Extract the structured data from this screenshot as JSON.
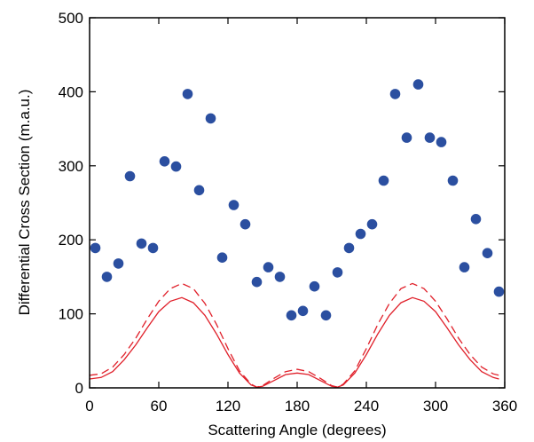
{
  "chart_data": {
    "type": "scatter",
    "title": "",
    "xlabel": "Scattering Angle (degrees)",
    "ylabel": "Differential Cross Section (m.a.u.)",
    "xlim": [
      0,
      360
    ],
    "ylim": [
      0,
      500
    ],
    "x_ticks": [
      0,
      60,
      120,
      180,
      240,
      300,
      360
    ],
    "y_ticks": [
      0,
      100,
      200,
      300,
      400,
      500
    ],
    "grid": false,
    "legend": "none",
    "series": [
      {
        "kind": "points",
        "color": "#2b4fa0",
        "x": [
          5,
          15,
          25,
          35,
          45,
          55,
          65,
          75,
          85,
          95,
          105,
          115,
          125,
          135,
          145,
          155,
          165,
          175,
          185,
          195,
          205,
          215,
          225,
          235,
          245,
          255,
          265,
          275,
          285,
          295,
          305,
          315,
          325,
          335,
          345,
          355
        ],
        "y": [
          189,
          150,
          168,
          286,
          195,
          189,
          306,
          299,
          397,
          267,
          364,
          176,
          247,
          221,
          143,
          163,
          150,
          98,
          104,
          137,
          98,
          156,
          189,
          208,
          221,
          280,
          397,
          338,
          410,
          338,
          332,
          280,
          163,
          228,
          182,
          130
        ]
      },
      {
        "kind": "line",
        "style": "solid",
        "color": "#e0202a",
        "x": [
          0,
          10,
          20,
          30,
          40,
          50,
          60,
          70,
          80,
          90,
          100,
          110,
          120,
          130,
          140,
          145,
          150,
          160,
          170,
          180,
          190,
          200,
          210,
          215,
          220,
          230,
          240,
          250,
          260,
          270,
          280,
          290,
          300,
          310,
          320,
          330,
          340,
          350,
          355
        ],
        "y": [
          12,
          14,
          22,
          38,
          58,
          81,
          103,
          117,
          122,
          115,
          98,
          73,
          45,
          20,
          4,
          1,
          2,
          10,
          18,
          20,
          18,
          10,
          2,
          1,
          4,
          20,
          45,
          73,
          98,
          115,
          122,
          117,
          103,
          81,
          58,
          38,
          22,
          14,
          12
        ]
      },
      {
        "kind": "line",
        "style": "dashed",
        "color": "#e0202a",
        "x": [
          0,
          10,
          20,
          30,
          40,
          50,
          60,
          70,
          80,
          90,
          100,
          110,
          120,
          130,
          140,
          145,
          150,
          160,
          170,
          180,
          190,
          200,
          210,
          215,
          220,
          230,
          240,
          250,
          260,
          270,
          280,
          290,
          300,
          310,
          320,
          330,
          340,
          350,
          355
        ],
        "y": [
          17,
          19,
          28,
          45,
          67,
          93,
          117,
          134,
          141,
          134,
          114,
          86,
          53,
          23,
          5,
          1,
          3,
          13,
          22,
          25,
          22,
          13,
          3,
          1,
          5,
          23,
          53,
          86,
          114,
          134,
          141,
          134,
          117,
          93,
          67,
          45,
          28,
          19,
          17
        ]
      }
    ]
  }
}
